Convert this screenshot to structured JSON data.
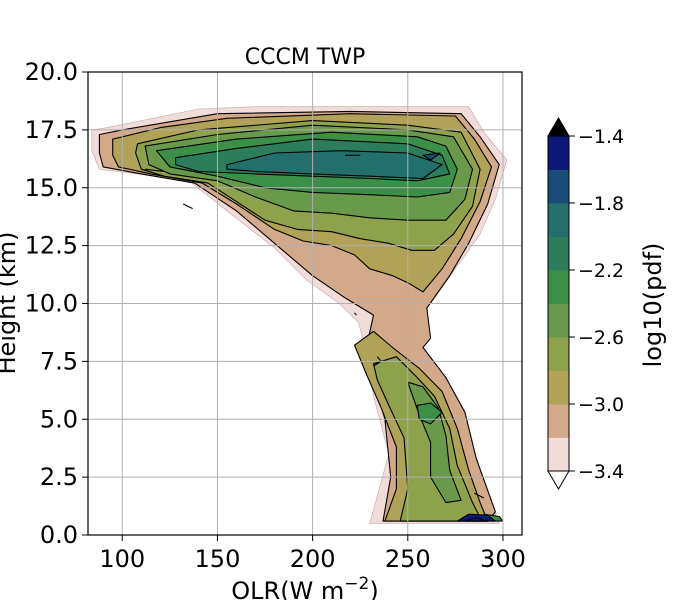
{
  "chart_data": {
    "type": "contour",
    "title": "CCCM TWP",
    "xlabel": "OLR(W m$^{-2}$)",
    "ylabel": "Height (km)",
    "xlim": [
      82,
      310
    ],
    "ylim": [
      0,
      20
    ],
    "x_ticks": [
      "100",
      "150",
      "200",
      "250",
      "300"
    ],
    "y_ticks": [
      "0.0",
      "2.5",
      "5.0",
      "7.5",
      "10.0",
      "12.5",
      "15.0",
      "17.5",
      "20.0"
    ],
    "grid": true,
    "colorbar": {
      "label": "log10(pdf)",
      "ticks": [
        "−3.4",
        "−3.0",
        "−2.6",
        "−2.2",
        "−1.8",
        "−1.4"
      ],
      "levels": [
        -3.4,
        -3.2,
        -3.0,
        -2.8,
        -2.6,
        -2.4,
        -2.2,
        -2.0,
        -1.8,
        -1.6,
        -1.4
      ],
      "colors": [
        "#f2dcd9",
        "#d3a98a",
        "#b0a257",
        "#8ea14b",
        "#69994a",
        "#3b8f47",
        "#2b7d5b",
        "#236f6c",
        "#1a4e78",
        "#0c1878"
      ],
      "extend": "both",
      "over_color": "#000000",
      "under_color": "#ffffff"
    },
    "regions": [
      {
        "level": -3.4,
        "points": [
          [
            84,
            17.5
          ],
          [
            92,
            17.6
          ],
          [
            140,
            18.4
          ],
          [
            170,
            18.5
          ],
          [
            230,
            18.5
          ],
          [
            282,
            18.5
          ],
          [
            290,
            17.4
          ],
          [
            302,
            16.2
          ],
          [
            296,
            14.5
          ],
          [
            288,
            13
          ],
          [
            275,
            11.5
          ],
          [
            262,
            10
          ],
          [
            252,
            8.8
          ],
          [
            250,
            8
          ],
          [
            266,
            7
          ],
          [
            278,
            5.4
          ],
          [
            286,
            3
          ],
          [
            298,
            0.5
          ],
          [
            230,
            0.5
          ],
          [
            240,
            3.5
          ],
          [
            232,
            6
          ],
          [
            228,
            8
          ],
          [
            224,
            9.2
          ],
          [
            214,
            10
          ],
          [
            197,
            11
          ],
          [
            180,
            12.4
          ],
          [
            155,
            14
          ],
          [
            135,
            15.3
          ],
          [
            108,
            15.6
          ],
          [
            88,
            15.8
          ],
          [
            84,
            16.6
          ]
        ]
      },
      {
        "level": -3.2,
        "points": [
          [
            88,
            17.3
          ],
          [
            100,
            17.5
          ],
          [
            150,
            18.2
          ],
          [
            220,
            18.3
          ],
          [
            278,
            18.2
          ],
          [
            288,
            17.2
          ],
          [
            298,
            16
          ],
          [
            292,
            14.3
          ],
          [
            282,
            12.6
          ],
          [
            272,
            11.2
          ],
          [
            260,
            9.8
          ],
          [
            262,
            8.5
          ],
          [
            258,
            8.1
          ],
          [
            270,
            6.8
          ],
          [
            280,
            5.3
          ],
          [
            286,
            3.3
          ],
          [
            296,
            1
          ],
          [
            292,
            0.6
          ],
          [
            237,
            0.6
          ],
          [
            241,
            2.5
          ],
          [
            238,
            5
          ],
          [
            232,
            6.8
          ],
          [
            228,
            8
          ],
          [
            232,
            9.5
          ],
          [
            216,
            10.3
          ],
          [
            200,
            11.2
          ],
          [
            180,
            12.6
          ],
          [
            160,
            14
          ],
          [
            138,
            15.2
          ],
          [
            110,
            15.6
          ],
          [
            90,
            15.9
          ],
          [
            88,
            16.5
          ]
        ]
      },
      {
        "level": -3.0,
        "points": [
          [
            95,
            17.1
          ],
          [
            120,
            17.6
          ],
          [
            155,
            18
          ],
          [
            220,
            18.2
          ],
          [
            275,
            18.1
          ],
          [
            285,
            17.1
          ],
          [
            294,
            15.9
          ],
          [
            288,
            14.4
          ],
          [
            278,
            12.8
          ],
          [
            268,
            11.5
          ],
          [
            258,
            10.5
          ],
          [
            250,
            10.9
          ],
          [
            242,
            11.2
          ],
          [
            230,
            11.5
          ],
          [
            222,
            12.1
          ],
          [
            210,
            12.5
          ],
          [
            195,
            12.7
          ],
          [
            180,
            13.2
          ],
          [
            160,
            14.3
          ],
          [
            142,
            15.2
          ],
          [
            115,
            15.6
          ],
          [
            98,
            15.9
          ],
          [
            95,
            16.4
          ]
        ]
      },
      {
        "level": -3.0,
        "points": [
          [
            222,
            8.2
          ],
          [
            232,
            8.8
          ],
          [
            242,
            8.1
          ],
          [
            256,
            7.2
          ],
          [
            268,
            6.2
          ],
          [
            276,
            4.6
          ],
          [
            282,
            2.8
          ],
          [
            288,
            1.4
          ],
          [
            292,
            0.6
          ],
          [
            238,
            0.6
          ],
          [
            244,
            2
          ],
          [
            244,
            3.8
          ],
          [
            236,
            5.5
          ],
          [
            228,
            7
          ],
          [
            224,
            7.8
          ]
        ]
      },
      {
        "level": -2.8,
        "points": [
          [
            108,
            16.9
          ],
          [
            140,
            17.5
          ],
          [
            200,
            17.9
          ],
          [
            250,
            17.7
          ],
          [
            278,
            17.4
          ],
          [
            288,
            15.8
          ],
          [
            284,
            14.2
          ],
          [
            274,
            13
          ],
          [
            264,
            12.3
          ],
          [
            252,
            12.3
          ],
          [
            240,
            12.6
          ],
          [
            225,
            12.8
          ],
          [
            210,
            13.1
          ],
          [
            192,
            13.2
          ],
          [
            175,
            13.6
          ],
          [
            160,
            14.4
          ],
          [
            145,
            15.2
          ],
          [
            122,
            15.5
          ],
          [
            110,
            15.8
          ],
          [
            107,
            16.5
          ]
        ]
      },
      {
        "level": -2.8,
        "points": [
          [
            232,
            7.4
          ],
          [
            244,
            7.7
          ],
          [
            255,
            6.8
          ],
          [
            264,
            6
          ],
          [
            272,
            4.6
          ],
          [
            276,
            3
          ],
          [
            284,
            1.4
          ],
          [
            289,
            0.6
          ],
          [
            246,
            0.6
          ],
          [
            250,
            2
          ],
          [
            248,
            4.2
          ],
          [
            240,
            5.6
          ],
          [
            234,
            6.7
          ]
        ]
      },
      {
        "level": -2.6,
        "points": [
          [
            112,
            16.8
          ],
          [
            150,
            17.3
          ],
          [
            200,
            17.7
          ],
          [
            250,
            17.5
          ],
          [
            274,
            17.2
          ],
          [
            284,
            15.8
          ],
          [
            280,
            14.5
          ],
          [
            270,
            13.6
          ],
          [
            250,
            13.6
          ],
          [
            230,
            13.7
          ],
          [
            210,
            13.9
          ],
          [
            190,
            14
          ],
          [
            170,
            14.6
          ],
          [
            150,
            15.3
          ],
          [
            125,
            15.6
          ],
          [
            114,
            16
          ]
        ]
      },
      {
        "level": -2.6,
        "points": [
          [
            250,
            6.6
          ],
          [
            258,
            6.4
          ],
          [
            266,
            5.5
          ],
          [
            270,
            4.3
          ],
          [
            272,
            2.8
          ],
          [
            278,
            1.5
          ],
          [
            270,
            1.4
          ],
          [
            262,
            2.5
          ],
          [
            262,
            4
          ],
          [
            256,
            5.2
          ]
        ]
      },
      {
        "level": -2.4,
        "points": [
          [
            118,
            16.6
          ],
          [
            160,
            17.1
          ],
          [
            210,
            17.4
          ],
          [
            255,
            17.2
          ],
          [
            270,
            16.8
          ],
          [
            276,
            15.8
          ],
          [
            272,
            14.8
          ],
          [
            255,
            14.6
          ],
          [
            230,
            14.7
          ],
          [
            200,
            14.8
          ],
          [
            175,
            15
          ],
          [
            150,
            15.5
          ],
          [
            125,
            15.9
          ]
        ]
      },
      {
        "level": -2.4,
        "points": [
          [
            255,
            5.6
          ],
          [
            262,
            5.7
          ],
          [
            268,
            5.3
          ],
          [
            262,
            4.8
          ],
          [
            256,
            5
          ]
        ]
      },
      {
        "level": -2.4,
        "points": [
          [
            284,
            0.6
          ],
          [
            290,
            0.9
          ],
          [
            298,
            0.8
          ],
          [
            300,
            0.6
          ]
        ]
      },
      {
        "level": -2.2,
        "points": [
          [
            128,
            16.3
          ],
          [
            160,
            16.7
          ],
          [
            200,
            17.1
          ],
          [
            250,
            16.9
          ],
          [
            268,
            16.4
          ],
          [
            272,
            15.6
          ],
          [
            255,
            15.3
          ],
          [
            230,
            15.4
          ],
          [
            200,
            15.5
          ],
          [
            170,
            15.6
          ],
          [
            140,
            15.7
          ],
          [
            128,
            16
          ]
        ]
      },
      {
        "level": -2.0,
        "points": [
          [
            155,
            16
          ],
          [
            180,
            16.5
          ],
          [
            215,
            16.6
          ],
          [
            250,
            16.5
          ],
          [
            268,
            16
          ],
          [
            258,
            15.4
          ],
          [
            230,
            15.5
          ],
          [
            200,
            15.6
          ],
          [
            170,
            15.7
          ],
          [
            155,
            15.8
          ]
        ]
      },
      {
        "level": -1.8,
        "points": [
          [
            258,
            16.4
          ],
          [
            267,
            16.5
          ],
          [
            262,
            16.2
          ]
        ]
      },
      {
        "level": -1.6,
        "points": [
          [
            276,
            0.6
          ],
          [
            282,
            0.9
          ],
          [
            292,
            0.85
          ],
          [
            296,
            0.6
          ]
        ]
      },
      {
        "level": -1.4,
        "points": [
          [
            280,
            0.6
          ],
          [
            286,
            0.75
          ],
          [
            292,
            0.6
          ]
        ]
      }
    ],
    "extra_lines": [
      {
        "points": [
          [
            217,
            16.4
          ],
          [
            225,
            16.4
          ]
        ]
      },
      {
        "points": [
          [
            232,
            7.3
          ],
          [
            236,
            7.5
          ],
          [
            234,
            7.7
          ]
        ]
      },
      {
        "points": [
          [
            222,
            9.6
          ],
          [
            223,
            9.5
          ]
        ]
      },
      {
        "points": [
          [
            132,
            14.3
          ],
          [
            137,
            14.1
          ]
        ]
      },
      {
        "points": [
          [
            112,
            15.8
          ],
          [
            122,
            15.7
          ]
        ]
      },
      {
        "points": [
          [
            285,
            1.8
          ],
          [
            290,
            1.6
          ]
        ]
      }
    ]
  }
}
